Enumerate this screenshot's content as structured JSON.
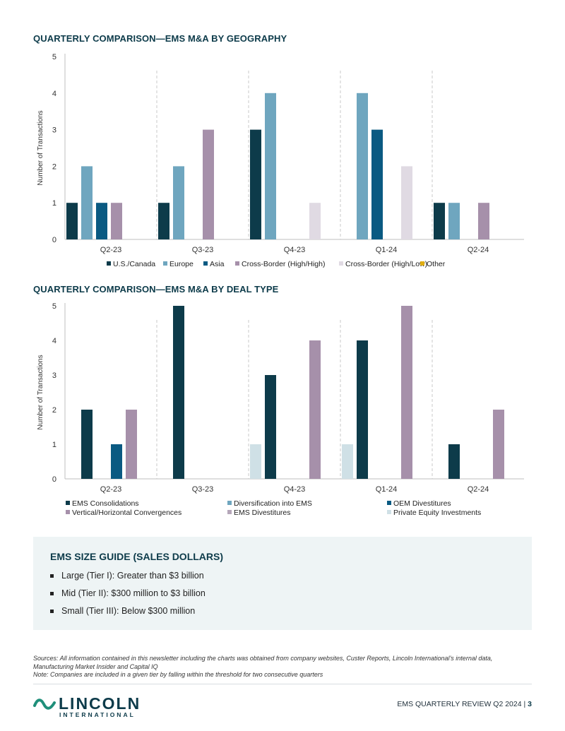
{
  "chart_data": [
    {
      "type": "bar",
      "title": "QUARTERLY COMPARISON—EMS M&A BY GEOGRAPHY",
      "ylabel": "Number of Transactions",
      "ylim": [
        0,
        5
      ],
      "yticks": [
        0,
        1,
        2,
        3,
        4,
        5
      ],
      "categories": [
        "Q2-23",
        "Q3-23",
        "Q4-23",
        "Q1-24",
        "Q2-24"
      ],
      "legend_position": "bottom",
      "series": [
        {
          "name": "U.S./Canada",
          "color": "#0d3b4a",
          "values": [
            1,
            1,
            3,
            0,
            1
          ]
        },
        {
          "name": "Europe",
          "color": "#6fa6bf",
          "values": [
            2,
            2,
            4,
            4,
            1
          ]
        },
        {
          "name": "Asia",
          "color": "#0a5a82",
          "values": [
            1,
            0,
            0,
            3,
            0
          ]
        },
        {
          "name": "Cross-Border (High/High)",
          "color": "#a690aa",
          "values": [
            1,
            3,
            0,
            0,
            1
          ]
        },
        {
          "name": "Cross-Border (High/Low)",
          "color": "#e0dae3",
          "values": [
            0,
            0,
            1,
            2,
            0
          ]
        },
        {
          "name": "Other",
          "color": "#e0ad11",
          "values": [
            0,
            0,
            0,
            0,
            0
          ]
        }
      ]
    },
    {
      "type": "bar",
      "title": "QUARTERLY COMPARISON—EMS M&A BY DEAL TYPE",
      "ylabel": "Number of Transactions",
      "ylim": [
        0,
        5
      ],
      "yticks": [
        0,
        1,
        2,
        3,
        4,
        5
      ],
      "categories": [
        "Q2-23",
        "Q3-23",
        "Q4-23",
        "Q1-24",
        "Q2-24"
      ],
      "legend_position": "bottom",
      "series": [
        {
          "name": "Private Equity Investments",
          "color": "#cfe0e6",
          "values": [
            0,
            0,
            1,
            1,
            0
          ]
        },
        {
          "name": "EMS Consolidations",
          "color": "#0d3b4a",
          "values": [
            2,
            5,
            3,
            4,
            1
          ]
        },
        {
          "name": "Diversification into EMS",
          "color": "#6fa6bf",
          "values": [
            0,
            0,
            0,
            0,
            0
          ]
        },
        {
          "name": "OEM Divestitures",
          "color": "#0a5a82",
          "values": [
            1,
            0,
            0,
            0,
            0
          ]
        },
        {
          "name": "Vertical/Horizontal Convergences",
          "color": "#a690aa",
          "values": [
            2,
            0,
            4,
            5,
            2
          ]
        },
        {
          "name": "EMS Divestitures",
          "color": "#b5a6b9",
          "values": [
            0,
            0,
            0,
            0,
            0
          ]
        }
      ],
      "legend_order": [
        1,
        2,
        3,
        4,
        5,
        0
      ]
    }
  ],
  "size_guide": {
    "title": "EMS SIZE GUIDE (SALES DOLLARS)",
    "items": [
      "Large (Tier I): Greater than $3 billion",
      "Mid (Tier II): $300 million to $3 billion",
      "Small (Tier III): Below $300 million"
    ]
  },
  "sources": {
    "line1": "Sources: All information contained in this newsletter including the charts was obtained from company websites, Custer Reports, Lincoln International’s internal data,",
    "line2": "Manufacturing Market Insider and Capital IQ",
    "line3": "Note: Companies are included in a given tier by falling within the threshold for two consecutive quarters"
  },
  "footer": {
    "logo_word": "LINCOLN",
    "logo_sub": "INTERNATIONAL",
    "publication": "EMS QUARTERLY REVIEW Q2 2024",
    "separator": "|",
    "page_number": "3",
    "brand_color": "#0d3b4a",
    "accent_color": "#1f8f7a"
  }
}
